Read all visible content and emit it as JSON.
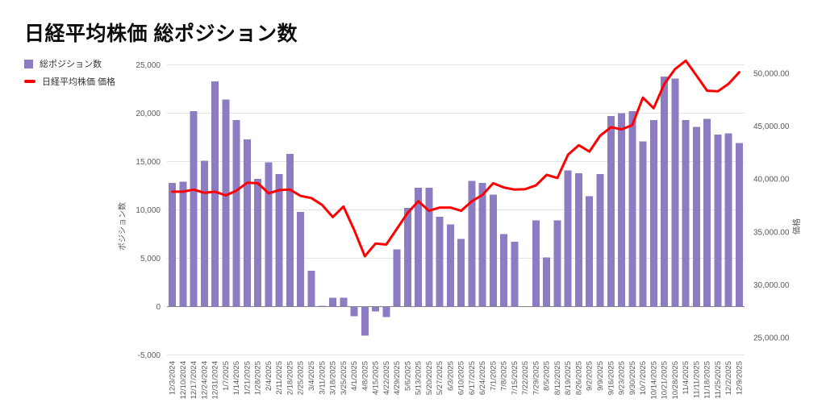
{
  "header": {
    "title": "日経平均株価 総ポジション数"
  },
  "legend": {
    "items": [
      {
        "label": "総ポジション数",
        "color": "#8e7cc3",
        "shape": "square"
      },
      {
        "label": "日経平均株価 価格",
        "color": "#ff0000",
        "shape": "line"
      }
    ]
  },
  "chart_data": {
    "type": "bar",
    "subtype": "bar-with-line-overlay",
    "title": "日経平均株価 総ポジション数",
    "grid": true,
    "legend_position": "top-left",
    "categories": [
      "12/3/2024",
      "12/10/2024",
      "12/17/2024",
      "12/24/2024",
      "12/31/2024",
      "1/7/2025",
      "1/14/2025",
      "1/21/2025",
      "1/28/2025",
      "2/4/2025",
      "2/11/2025",
      "2/18/2025",
      "2/25/2025",
      "3/4/2025",
      "3/11/2025",
      "3/18/2025",
      "3/25/2025",
      "4/1/2025",
      "4/8/2025",
      "4/15/2025",
      "4/22/2025",
      "4/29/2025",
      "5/6/2025",
      "5/13/2025",
      "5/20/2025",
      "5/27/2025",
      "6/3/2025",
      "6/10/2025",
      "6/17/2025",
      "6/24/2025",
      "7/1/2025",
      "7/8/2025",
      "7/15/2025",
      "7/22/2025",
      "7/29/2025",
      "8/5/2025",
      "8/12/2025",
      "8/19/2025",
      "8/26/2025",
      "9/2/2025",
      "9/9/2025",
      "9/16/2025",
      "9/23/2025",
      "9/30/2025",
      "10/7/2025",
      "10/14/2025",
      "10/21/2025",
      "10/28/2025",
      "11/4/2025",
      "11/11/2025",
      "11/18/2025",
      "11/25/2025",
      "12/2/2025",
      "12/9/2025"
    ],
    "series": [
      {
        "name": "総ポジション数",
        "type": "bar",
        "axis": "left",
        "color": "#8e7cc3",
        "values": [
          12800,
          12900,
          20200,
          15100,
          23300,
          21400,
          19300,
          17300,
          13200,
          14900,
          13700,
          15800,
          9800,
          3700,
          100,
          900,
          900,
          -1000,
          -3000,
          -500,
          -1100,
          5900,
          10200,
          12300,
          12300,
          9300,
          8500,
          7000,
          13000,
          12800,
          11600,
          7500,
          6700,
          0,
          8900,
          5100,
          8900,
          14100,
          13800,
          11400,
          13700,
          19700,
          20000,
          20200,
          17100,
          19300,
          23800,
          23600,
          19300,
          18600,
          19400,
          17800,
          17900,
          16900
        ]
      },
      {
        "name": "日経平均株価 価格",
        "type": "line",
        "axis": "right",
        "color": "#ff0000",
        "values": [
          38800,
          38800,
          39000,
          38700,
          38800,
          38450,
          38900,
          39650,
          39600,
          38650,
          38950,
          39000,
          38400,
          38200,
          37550,
          36400,
          37400,
          35200,
          32700,
          33900,
          33800,
          35300,
          36800,
          37900,
          37000,
          37300,
          37300,
          37000,
          37900,
          38500,
          39600,
          39200,
          39000,
          39050,
          39400,
          40400,
          40100,
          42300,
          43200,
          42600,
          44100,
          44900,
          44700,
          45100,
          47700,
          46700,
          49000,
          50400,
          51200,
          49800,
          48350,
          48300,
          49000,
          50100
        ]
      }
    ],
    "left_axis": {
      "title": "ポジション数",
      "range": [
        -5000,
        25000
      ],
      "ticks": [
        25000,
        20000,
        15000,
        10000,
        5000,
        0,
        -5000
      ],
      "tick_labels": [
        "25,000",
        "20,000",
        "15,000",
        "10,000",
        "5,000",
        "0",
        "-5,000"
      ]
    },
    "right_axis": {
      "title": "価格",
      "range": [
        25000,
        50000
      ],
      "ticks": [
        50000,
        45000,
        40000,
        35000,
        30000,
        25000
      ],
      "tick_labels": [
        "50,000.00",
        "45,000.00",
        "40,000.00",
        "35,000.00",
        "30,000.00",
        "25,000.00"
      ]
    },
    "colors": {
      "bar": "#8e7cc3",
      "line": "#ff0000",
      "gridline": "#e3e3e3",
      "zero_axis": "#808080",
      "tick_text": "#595959",
      "title_text": "#0d0d0d"
    }
  }
}
